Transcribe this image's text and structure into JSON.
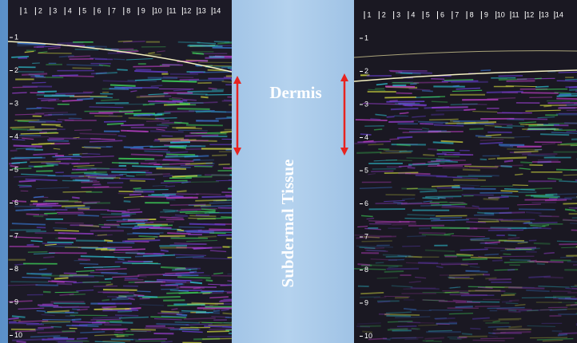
{
  "labels": {
    "dermis": "Dermis",
    "subdermal": "Subdermal Tissue"
  },
  "images": [
    {
      "top_ruler": [
        1,
        2,
        3,
        4,
        5,
        6,
        7,
        8,
        9,
        10,
        11,
        12,
        13,
        14
      ],
      "side_ruler": [
        1,
        2,
        3,
        4,
        5,
        6,
        7,
        8,
        9,
        10
      ]
    },
    {
      "top_ruler": [
        1,
        2,
        3,
        4,
        5,
        6,
        7,
        8,
        9,
        10,
        11,
        12,
        13,
        14
      ],
      "side_ruler": [
        1,
        2,
        3,
        4,
        5,
        6,
        7,
        8,
        9,
        10
      ]
    }
  ]
}
